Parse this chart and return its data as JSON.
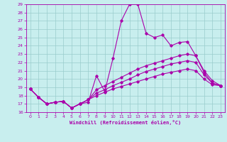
{
  "xlabel": "Windchill (Refroidissement éolien,°C)",
  "xlim": [
    -0.5,
    23.5
  ],
  "ylim": [
    16,
    29
  ],
  "yticks": [
    16,
    17,
    18,
    19,
    20,
    21,
    22,
    23,
    24,
    25,
    26,
    27,
    28,
    29
  ],
  "xticks": [
    0,
    1,
    2,
    3,
    4,
    5,
    6,
    7,
    8,
    9,
    10,
    11,
    12,
    13,
    14,
    15,
    16,
    17,
    18,
    19,
    20,
    21,
    22,
    23
  ],
  "background_color": "#c8eeee",
  "line_color": "#aa00aa",
  "grid_color": "#99cccc",
  "lines": [
    {
      "x": [
        0,
        1,
        2,
        3,
        4,
        5,
        6,
        7,
        8,
        9,
        10,
        11,
        12,
        13,
        14,
        15,
        16,
        17,
        18,
        19,
        20,
        21,
        22,
        23
      ],
      "y": [
        18.8,
        17.8,
        17.0,
        17.2,
        17.3,
        16.5,
        17.0,
        17.2,
        20.4,
        18.5,
        22.5,
        27.0,
        29.0,
        29.0,
        25.5,
        25.0,
        25.3,
        24.0,
        24.4,
        24.5,
        22.8,
        20.8,
        19.5,
        19.2
      ]
    },
    {
      "x": [
        0,
        1,
        2,
        3,
        4,
        5,
        6,
        7,
        8,
        9,
        10,
        11,
        12,
        13,
        14,
        15,
        16,
        17,
        18,
        19,
        20,
        21,
        22,
        23
      ],
      "y": [
        18.8,
        17.8,
        17.0,
        17.2,
        17.3,
        16.5,
        17.0,
        17.5,
        18.7,
        19.2,
        19.7,
        20.2,
        20.7,
        21.2,
        21.6,
        21.9,
        22.2,
        22.5,
        22.8,
        23.0,
        22.8,
        21.0,
        19.8,
        19.2
      ]
    },
    {
      "x": [
        0,
        1,
        2,
        3,
        4,
        5,
        6,
        7,
        8,
        9,
        10,
        11,
        12,
        13,
        14,
        15,
        16,
        17,
        18,
        19,
        20,
        21,
        22,
        23
      ],
      "y": [
        18.8,
        17.8,
        17.0,
        17.2,
        17.3,
        16.5,
        17.0,
        17.5,
        18.3,
        18.7,
        19.2,
        19.6,
        20.0,
        20.5,
        20.9,
        21.2,
        21.5,
        21.8,
        22.0,
        22.2,
        22.0,
        20.5,
        19.5,
        19.2
      ]
    },
    {
      "x": [
        0,
        1,
        2,
        3,
        4,
        5,
        6,
        7,
        8,
        9,
        10,
        11,
        12,
        13,
        14,
        15,
        16,
        17,
        18,
        19,
        20,
        21,
        22,
        23
      ],
      "y": [
        18.8,
        17.8,
        17.0,
        17.2,
        17.3,
        16.5,
        17.0,
        17.5,
        18.0,
        18.4,
        18.8,
        19.1,
        19.4,
        19.7,
        20.0,
        20.3,
        20.6,
        20.8,
        21.0,
        21.2,
        21.0,
        20.0,
        19.3,
        19.2
      ]
    }
  ]
}
